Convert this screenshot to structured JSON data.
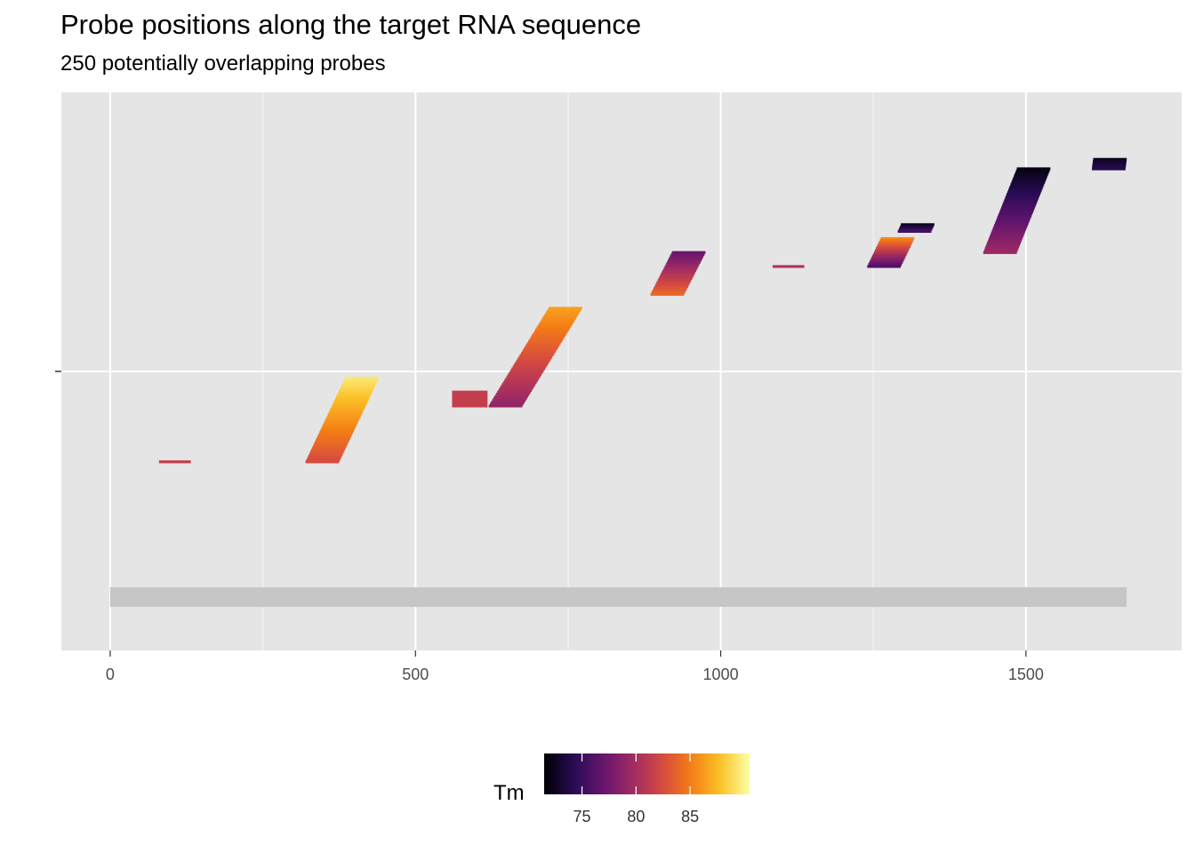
{
  "chart_data": {
    "type": "range-segments",
    "title": "Probe positions along the target RNA sequence",
    "subtitle": "250 potentially overlapping probes",
    "x_ticks": [
      0,
      500,
      1000,
      1500
    ],
    "x_minor_ticks": [
      250,
      750,
      1250
    ],
    "xlim": [
      -80,
      1755
    ],
    "grid": true,
    "target_sequence": {
      "start": 0,
      "end": 1665
    },
    "color_scale": {
      "name": "Tm",
      "palette": "inferno",
      "min": 71.5,
      "max": 90.5,
      "ticks": [
        75,
        80,
        85
      ]
    },
    "legend_position": "bottom",
    "probe_clusters": [
      {
        "start_min": 80,
        "start_max": 80,
        "length": 52,
        "row_top": 0.662,
        "row_bottom": 0.662,
        "tm_bottom": 81.5,
        "tm_top": 81.5
      },
      {
        "start_min": 320,
        "start_max": 385,
        "length": 55,
        "row_top": 0.512,
        "row_bottom": 0.662,
        "tm_bottom": 82.5,
        "tm_top": 89.5
      },
      {
        "start_min": 560,
        "start_max": 560,
        "length": 58,
        "row_top": 0.537,
        "row_bottom": 0.562,
        "tm_bottom": 81.5,
        "tm_top": 81.5
      },
      {
        "start_min": 620,
        "start_max": 718,
        "length": 55,
        "row_top": 0.387,
        "row_bottom": 0.562,
        "tm_bottom": 79.0,
        "tm_top": 86.5
      },
      {
        "start_min": 885,
        "start_max": 920,
        "length": 55,
        "row_top": 0.287,
        "row_bottom": 0.362,
        "tm_bottom": 84.0,
        "tm_top": 77.0
      },
      {
        "start_min": 1085,
        "start_max": 1085,
        "length": 52,
        "row_top": 0.312,
        "row_bottom": 0.312,
        "tm_bottom": 80.5,
        "tm_top": 80.5
      },
      {
        "start_min": 1240,
        "start_max": 1262,
        "length": 55,
        "row_top": 0.262,
        "row_bottom": 0.312,
        "tm_bottom": 76.0,
        "tm_top": 85.5
      },
      {
        "start_min": 1290,
        "start_max": 1295,
        "length": 55,
        "row_top": 0.237,
        "row_bottom": 0.249,
        "tm_bottom": 75.5,
        "tm_top": 72.5
      },
      {
        "start_min": 1430,
        "start_max": 1485,
        "length": 55,
        "row_top": 0.137,
        "row_bottom": 0.287,
        "tm_bottom": 79.5,
        "tm_top": 72.0
      },
      {
        "start_min": 1608,
        "start_max": 1610,
        "length": 55,
        "row_top": 0.12,
        "row_bottom": 0.137,
        "tm_bottom": 74.0,
        "tm_top": 72.5
      }
    ]
  }
}
